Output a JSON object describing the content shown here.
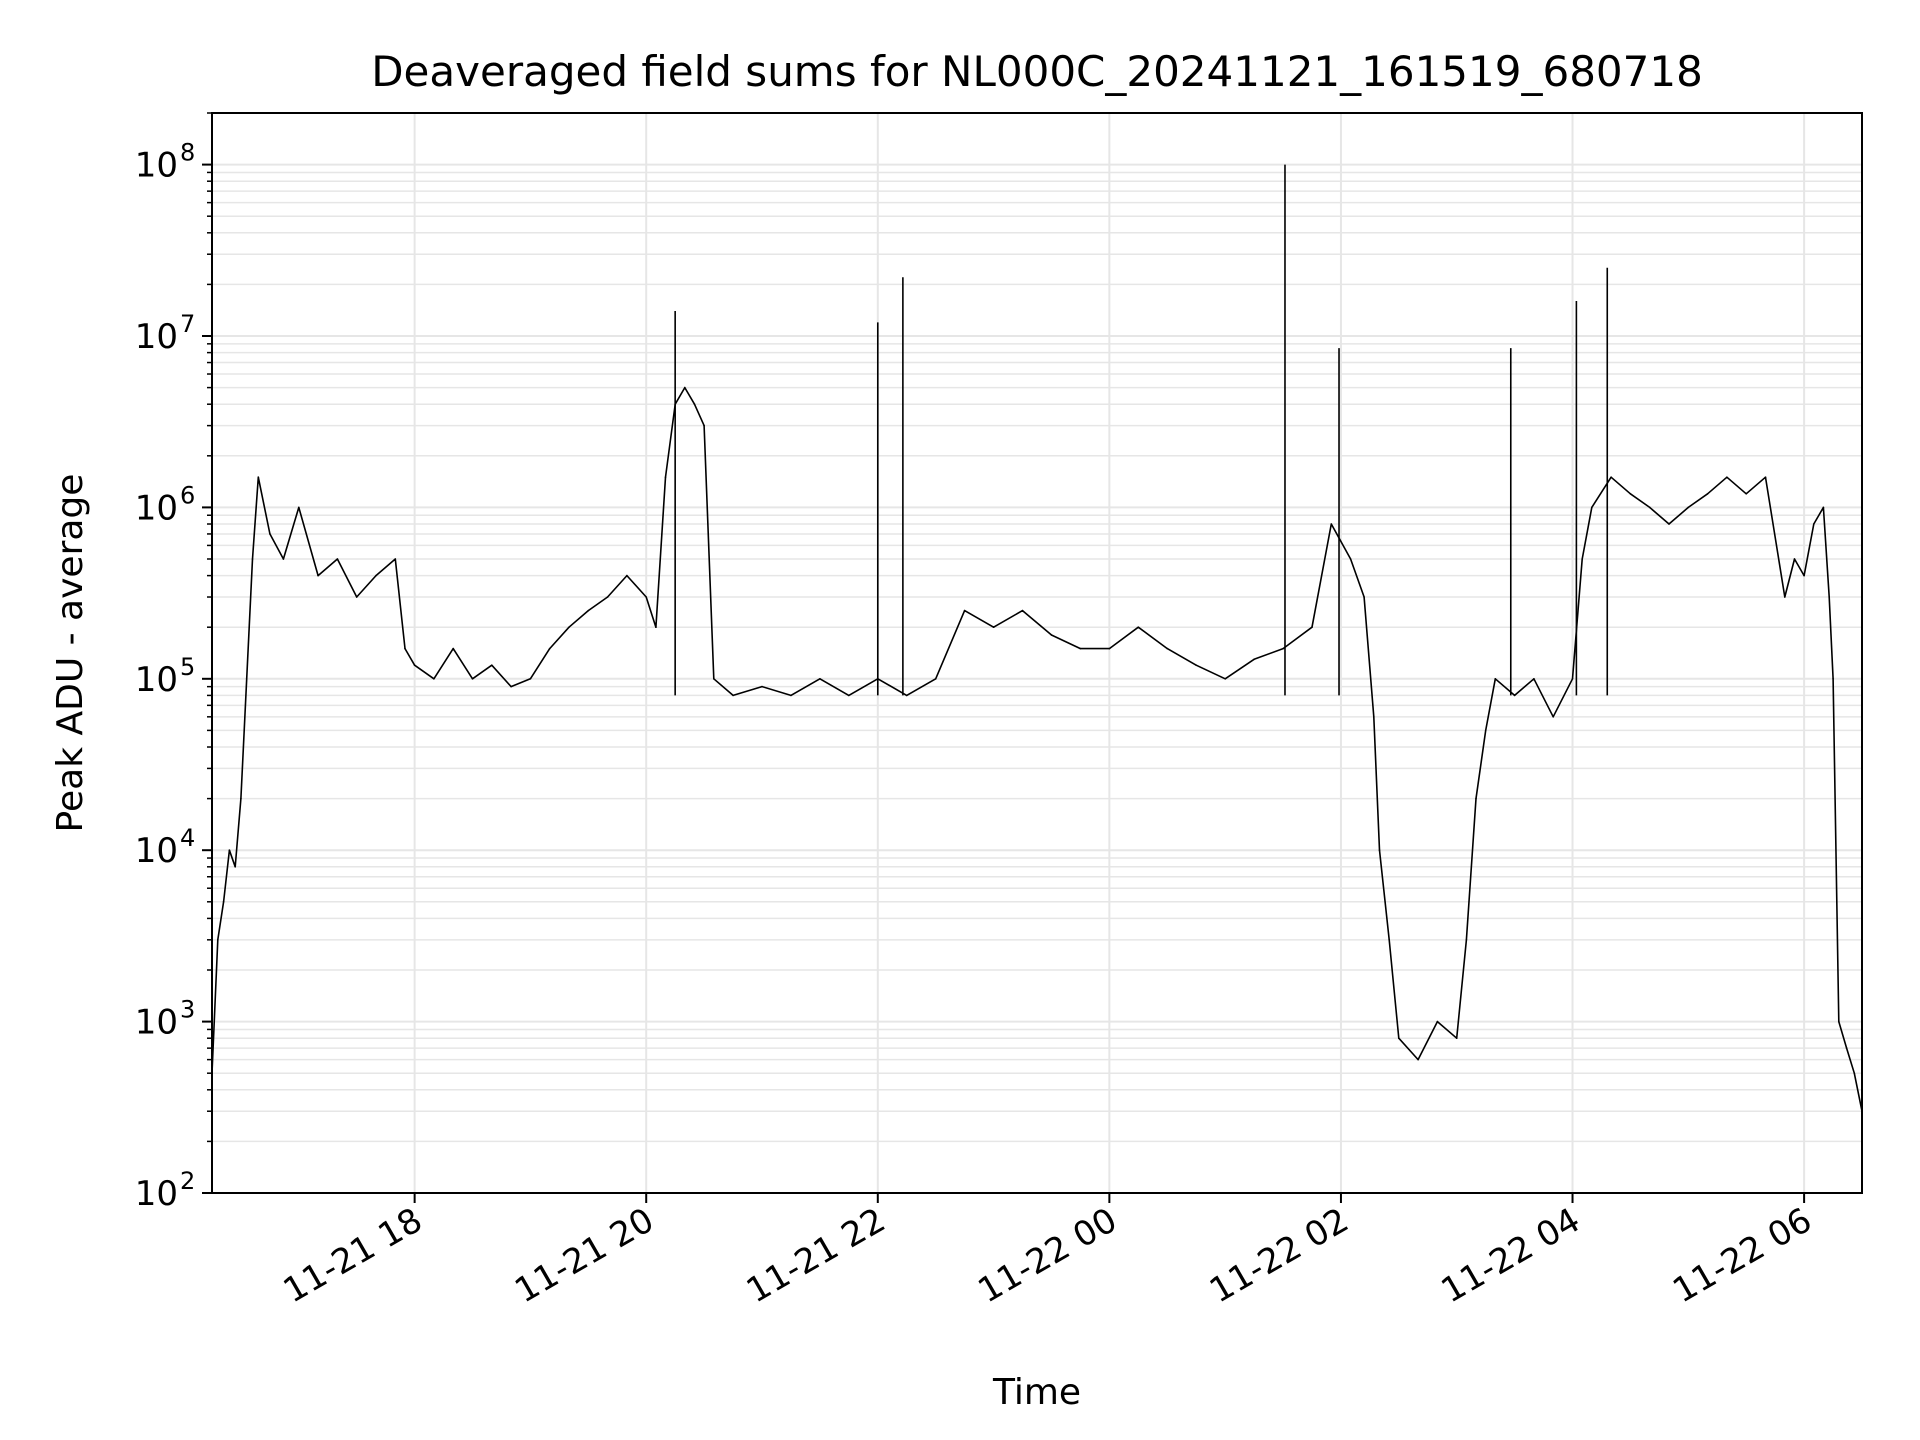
{
  "chart_data": {
    "type": "line",
    "title": "Deaveraged field sums for NL000C_20241121_161519_680718",
    "xlabel": "Time",
    "ylabel": "Peak ADU - average",
    "yscale": "log",
    "ylim": [
      100,
      200000000
    ],
    "xlim": [
      "2024-11-21 16:15",
      "2024-11-22 06:30"
    ],
    "grid": true,
    "line_color": "#000000",
    "grid_color": "#e6e6e6",
    "x_ticks": [
      {
        "t": "2024-11-21 18:00",
        "label": "11-21 18"
      },
      {
        "t": "2024-11-21 20:00",
        "label": "11-21 20"
      },
      {
        "t": "2024-11-21 22:00",
        "label": "11-21 22"
      },
      {
        "t": "2024-11-22 00:00",
        "label": "11-22 00"
      },
      {
        "t": "2024-11-22 02:00",
        "label": "11-22 02"
      },
      {
        "t": "2024-11-22 04:00",
        "label": "11-22 04"
      },
      {
        "t": "2024-11-22 06:00",
        "label": "11-22 06"
      }
    ],
    "y_ticks": [
      {
        "v": 100,
        "base": "10",
        "exp": "2"
      },
      {
        "v": 1000,
        "base": "10",
        "exp": "3"
      },
      {
        "v": 10000,
        "base": "10",
        "exp": "4"
      },
      {
        "v": 100000,
        "base": "10",
        "exp": "5"
      },
      {
        "v": 1000000,
        "base": "10",
        "exp": "6"
      },
      {
        "v": 10000000,
        "base": "10",
        "exp": "7"
      },
      {
        "v": 100000000,
        "base": "10",
        "exp": "8"
      }
    ],
    "series": [
      {
        "points": [
          [
            "2024-11-21 16:15",
            500
          ],
          [
            "2024-11-21 16:18",
            3000
          ],
          [
            "2024-11-21 16:21",
            5000
          ],
          [
            "2024-11-21 16:24",
            10000
          ],
          [
            "2024-11-21 16:27",
            8000
          ],
          [
            "2024-11-21 16:30",
            20000
          ],
          [
            "2024-11-21 16:33",
            100000
          ],
          [
            "2024-11-21 16:36",
            500000
          ],
          [
            "2024-11-21 16:39",
            1500000
          ],
          [
            "2024-11-21 16:45",
            700000
          ],
          [
            "2024-11-21 16:52",
            500000
          ],
          [
            "2024-11-21 17:00",
            1000000
          ],
          [
            "2024-11-21 17:10",
            400000
          ],
          [
            "2024-11-21 17:20",
            500000
          ],
          [
            "2024-11-21 17:30",
            300000
          ],
          [
            "2024-11-21 17:40",
            400000
          ],
          [
            "2024-11-21 17:50",
            500000
          ],
          [
            "2024-11-21 17:55",
            150000
          ],
          [
            "2024-11-21 18:00",
            120000
          ],
          [
            "2024-11-21 18:10",
            100000
          ],
          [
            "2024-11-21 18:20",
            150000
          ],
          [
            "2024-11-21 18:30",
            100000
          ],
          [
            "2024-11-21 18:40",
            120000
          ],
          [
            "2024-11-21 18:50",
            90000
          ],
          [
            "2024-11-21 19:00",
            100000
          ],
          [
            "2024-11-21 19:10",
            150000
          ],
          [
            "2024-11-21 19:20",
            200000
          ],
          [
            "2024-11-21 19:30",
            250000
          ],
          [
            "2024-11-21 19:40",
            300000
          ],
          [
            "2024-11-21 19:50",
            400000
          ],
          [
            "2024-11-21 20:00",
            300000
          ],
          [
            "2024-11-21 20:05",
            200000
          ],
          [
            "2024-11-21 20:10",
            1500000
          ],
          [
            "2024-11-21 20:15",
            4000000
          ],
          [
            "2024-11-21 20:20",
            5000000
          ],
          [
            "2024-11-21 20:25",
            4000000
          ],
          [
            "2024-11-21 20:30",
            3000000
          ],
          [
            "2024-11-21 20:35",
            100000
          ],
          [
            "2024-11-21 20:45",
            80000
          ],
          [
            "2024-11-21 21:00",
            90000
          ],
          [
            "2024-11-21 21:15",
            80000
          ],
          [
            "2024-11-21 21:30",
            100000
          ],
          [
            "2024-11-21 21:45",
            80000
          ],
          [
            "2024-11-21 22:00",
            100000
          ],
          [
            "2024-11-21 22:15",
            80000
          ],
          [
            "2024-11-21 22:30",
            100000
          ],
          [
            "2024-11-21 22:45",
            250000
          ],
          [
            "2024-11-21 23:00",
            200000
          ],
          [
            "2024-11-21 23:15",
            250000
          ],
          [
            "2024-11-21 23:30",
            180000
          ],
          [
            "2024-11-21 23:45",
            150000
          ],
          [
            "2024-11-22 00:00",
            150000
          ],
          [
            "2024-11-22 00:15",
            200000
          ],
          [
            "2024-11-22 00:30",
            150000
          ],
          [
            "2024-11-22 00:45",
            120000
          ],
          [
            "2024-11-22 01:00",
            100000
          ],
          [
            "2024-11-22 01:15",
            130000
          ],
          [
            "2024-11-22 01:30",
            150000
          ],
          [
            "2024-11-22 01:45",
            200000
          ],
          [
            "2024-11-22 01:55",
            800000
          ],
          [
            "2024-11-22 02:05",
            500000
          ],
          [
            "2024-11-22 02:12",
            300000
          ],
          [
            "2024-11-22 02:17",
            60000
          ],
          [
            "2024-11-22 02:20",
            10000
          ],
          [
            "2024-11-22 02:25",
            3000
          ],
          [
            "2024-11-22 02:30",
            800
          ],
          [
            "2024-11-22 02:40",
            600
          ],
          [
            "2024-11-22 02:50",
            1000
          ],
          [
            "2024-11-22 03:00",
            800
          ],
          [
            "2024-11-22 03:05",
            3000
          ],
          [
            "2024-11-22 03:10",
            20000
          ],
          [
            "2024-11-22 03:15",
            50000
          ],
          [
            "2024-11-22 03:20",
            100000
          ],
          [
            "2024-11-22 03:30",
            80000
          ],
          [
            "2024-11-22 03:40",
            100000
          ],
          [
            "2024-11-22 03:50",
            60000
          ],
          [
            "2024-11-22 04:00",
            100000
          ],
          [
            "2024-11-22 04:05",
            500000
          ],
          [
            "2024-11-22 04:10",
            1000000
          ],
          [
            "2024-11-22 04:20",
            1500000
          ],
          [
            "2024-11-22 04:30",
            1200000
          ],
          [
            "2024-11-22 04:40",
            1000000
          ],
          [
            "2024-11-22 04:50",
            800000
          ],
          [
            "2024-11-22 05:00",
            1000000
          ],
          [
            "2024-11-22 05:10",
            1200000
          ],
          [
            "2024-11-22 05:20",
            1500000
          ],
          [
            "2024-11-22 05:30",
            1200000
          ],
          [
            "2024-11-22 05:40",
            1500000
          ],
          [
            "2024-11-22 05:50",
            300000
          ],
          [
            "2024-11-22 05:55",
            500000
          ],
          [
            "2024-11-22 06:00",
            400000
          ],
          [
            "2024-11-22 06:05",
            800000
          ],
          [
            "2024-11-22 06:10",
            1000000
          ],
          [
            "2024-11-22 06:13",
            300000
          ],
          [
            "2024-11-22 06:15",
            100000
          ],
          [
            "2024-11-22 06:18",
            1000
          ],
          [
            "2024-11-22 06:22",
            700
          ],
          [
            "2024-11-22 06:26",
            500
          ],
          [
            "2024-11-22 06:30",
            300
          ]
        ]
      }
    ],
    "spikes": [
      [
        "2024-11-21 20:15",
        14000000
      ],
      [
        "2024-11-21 22:00",
        12000000
      ],
      [
        "2024-11-21 22:13",
        22000000
      ],
      [
        "2024-11-22 01:31",
        100000000
      ],
      [
        "2024-11-22 01:59",
        8500000
      ],
      [
        "2024-11-22 03:28",
        8500000
      ],
      [
        "2024-11-22 04:02",
        16000000
      ],
      [
        "2024-11-22 04:18",
        25000000
      ]
    ]
  }
}
